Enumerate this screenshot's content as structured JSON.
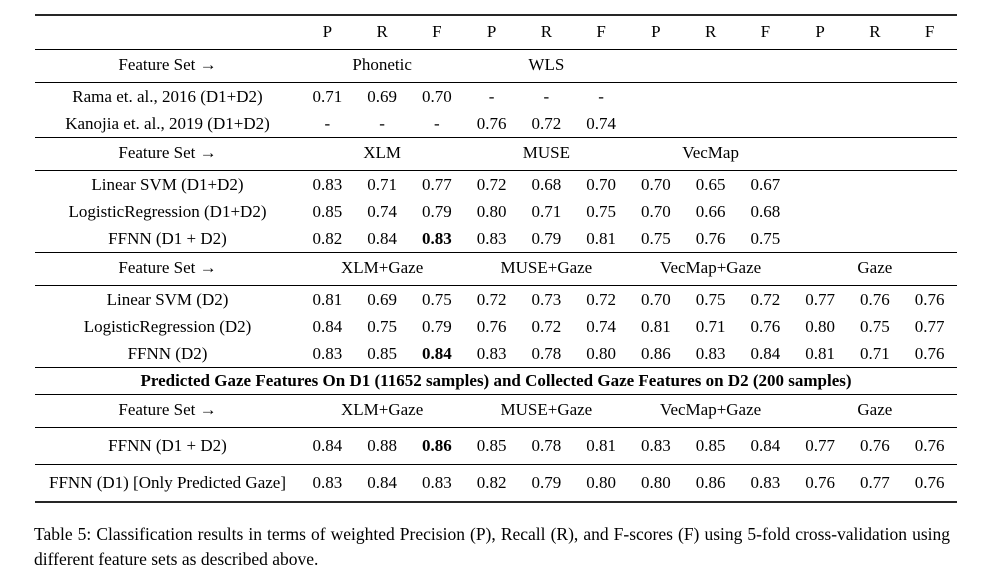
{
  "table": {
    "col_headers": [
      "P",
      "R",
      "F",
      "P",
      "R",
      "F",
      "P",
      "R",
      "F",
      "P",
      "R",
      "F"
    ],
    "banner": "Predicted Gaze Features On D1 (11652 samples) and Collected Gaze Features on D2 (200 samples)",
    "sections": [
      {
        "feature_set": "Feature Set →",
        "groups": [
          "Phonetic",
          "WLS"
        ],
        "rows": [
          {
            "label": "Rama et. al., 2016 (D1+D2)",
            "c": [
              "0.71",
              "0.69",
              "0.70",
              "-",
              "-",
              "-",
              "",
              "",
              "",
              "",
              "",
              ""
            ]
          },
          {
            "label": "Kanojia et. al., 2019 (D1+D2)",
            "c": [
              "-",
              "-",
              "-",
              "0.76",
              "0.72",
              "0.74",
              "",
              "",
              "",
              "",
              "",
              ""
            ]
          }
        ]
      },
      {
        "feature_set": "Feature Set →",
        "groups": [
          "XLM",
          "MUSE",
          "VecMap"
        ],
        "rows": [
          {
            "label": "Linear SVM (D1+D2)",
            "c": [
              "0.83",
              "0.71",
              "0.77",
              "0.72",
              "0.68",
              "0.70",
              "0.70",
              "0.65",
              "0.67",
              "",
              "",
              ""
            ]
          },
          {
            "label": "LogisticRegression (D1+D2)",
            "c": [
              "0.85",
              "0.74",
              "0.79",
              "0.80",
              "0.71",
              "0.75",
              "0.70",
              "0.66",
              "0.68",
              "",
              "",
              ""
            ]
          },
          {
            "label": "FFNN (D1 + D2)",
            "c": [
              "0.82",
              "0.84",
              "0.83",
              "0.83",
              "0.79",
              "0.81",
              "0.75",
              "0.76",
              "0.75",
              "",
              "",
              ""
            ]
          }
        ]
      },
      {
        "feature_set": "Feature Set →",
        "groups": [
          "XLM+Gaze",
          "MUSE+Gaze",
          "VecMap+Gaze",
          "Gaze"
        ],
        "rows": [
          {
            "label": "Linear SVM (D2)",
            "c": [
              "0.81",
              "0.69",
              "0.75",
              "0.72",
              "0.73",
              "0.72",
              "0.70",
              "0.75",
              "0.72",
              "0.77",
              "0.76",
              "0.76"
            ]
          },
          {
            "label": "LogisticRegression (D2)",
            "c": [
              "0.84",
              "0.75",
              "0.79",
              "0.76",
              "0.72",
              "0.74",
              "0.81",
              "0.71",
              "0.76",
              "0.80",
              "0.75",
              "0.77"
            ]
          },
          {
            "label": "FFNN (D2)",
            "c": [
              "0.83",
              "0.85",
              "0.84",
              "0.83",
              "0.78",
              "0.80",
              "0.86",
              "0.83",
              "0.84",
              "0.81",
              "0.71",
              "0.76"
            ]
          }
        ]
      },
      {
        "feature_set": "Feature Set →",
        "groups": [
          "XLM+Gaze",
          "MUSE+Gaze",
          "VecMap+Gaze",
          "Gaze"
        ],
        "rows": [
          {
            "label": "FFNN (D1 + D2)",
            "c": [
              "0.84",
              "0.88",
              "0.86",
              "0.85",
              "0.78",
              "0.81",
              "0.83",
              "0.85",
              "0.84",
              "0.77",
              "0.76",
              "0.76"
            ]
          },
          {
            "label": "FFNN (D1) [Only Predicted Gaze]",
            "c": [
              "0.83",
              "0.84",
              "0.83",
              "0.82",
              "0.79",
              "0.80",
              "0.80",
              "0.86",
              "0.83",
              "0.76",
              "0.77",
              "0.76"
            ]
          }
        ]
      }
    ]
  },
  "caption": "Table 5: Classification results in terms of weighted Precision (P), Recall (R), and F-scores (F) using 5-fold cross-validation using different feature sets as described above."
}
